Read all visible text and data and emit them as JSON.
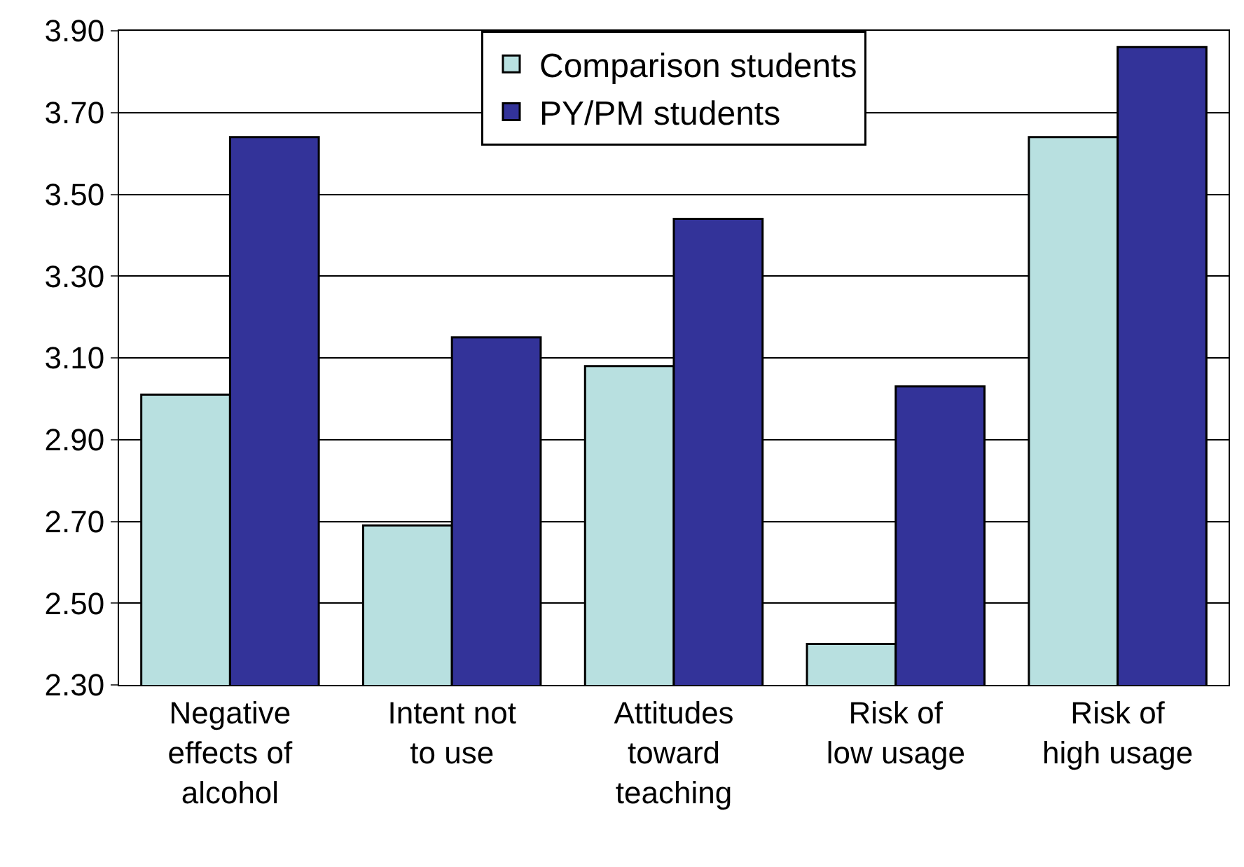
{
  "chart_data": {
    "type": "bar",
    "categories": [
      "Negative\neffects of\nalcohol",
      "Intent not\nto use",
      "Attitudes\ntoward\nteaching",
      "Risk of\nlow usage",
      "Risk of\nhigh usage"
    ],
    "series": [
      {
        "name": "Comparison students",
        "color": "#b8e0e0",
        "values": [
          3.01,
          2.69,
          3.08,
          2.4,
          3.64
        ]
      },
      {
        "name": "PY/PM students",
        "color": "#333399",
        "values": [
          3.64,
          3.15,
          3.44,
          3.03,
          3.86
        ]
      }
    ],
    "ylim": [
      2.3,
      3.9
    ],
    "yticks": [
      {
        "value": 2.3,
        "label": "2.30"
      },
      {
        "value": 2.5,
        "label": "2.50"
      },
      {
        "value": 2.7,
        "label": "2.70"
      },
      {
        "value": 2.9,
        "label": "2.90"
      },
      {
        "value": 3.1,
        "label": "3.10"
      },
      {
        "value": 3.3,
        "label": "3.30"
      },
      {
        "value": 3.5,
        "label": "3.50"
      },
      {
        "value": 3.7,
        "label": "3.70"
      },
      {
        "value": 3.9,
        "label": "3.90"
      }
    ],
    "grid": "y",
    "legend": "top"
  }
}
